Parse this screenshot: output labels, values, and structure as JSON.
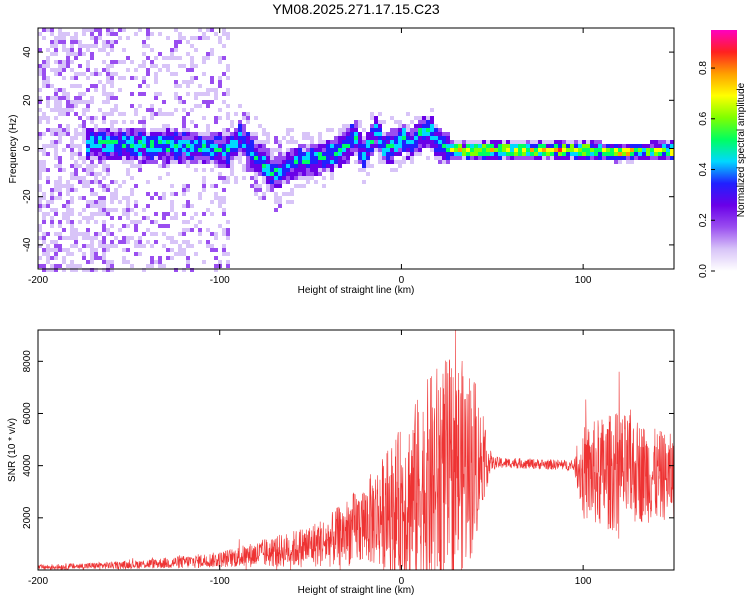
{
  "title": "YM08.2025.271.17.15.C23",
  "chart_data": [
    {
      "type": "heatmap",
      "name": "spectrogram",
      "xlabel": "Height of straight line (km)",
      "ylabel": "Frequency (Hz)",
      "xlim": [
        -200,
        150
      ],
      "ylim": [
        -50,
        50
      ],
      "xticks": [
        "-200",
        "-100",
        "0",
        "100"
      ],
      "yticks": [
        "-40",
        "-20",
        "0",
        "20",
        "40"
      ],
      "colorbar": {
        "label": "Normalized spectral amplitude",
        "range": [
          0,
          0.95
        ],
        "ticks": [
          "0.0",
          "0.2",
          "0.4",
          "0.6",
          "0.8"
        ],
        "colors": [
          "#ffffff",
          "#d8c4f8",
          "#9a4ef0",
          "#6a00e8",
          "#2020ff",
          "#00d8ff",
          "#00ff60",
          "#80ff00",
          "#ffff00",
          "#ffa000",
          "#ff2020",
          "#ff00c0"
        ]
      },
      "ridge": {
        "x": [
          -170,
          -150,
          -130,
          -110,
          -95,
          -90,
          -80,
          -72,
          -60,
          -50,
          -40,
          -30,
          -27,
          -22,
          -15,
          -10,
          -5,
          0,
          5,
          10,
          15,
          20,
          30,
          50,
          80,
          100,
          120,
          150
        ],
        "f": [
          3,
          2,
          2,
          1,
          0,
          5,
          -3,
          -10,
          -5,
          -4,
          -2,
          2,
          8,
          -3,
          8,
          0,
          3,
          5,
          2,
          8,
          8,
          2,
          0,
          0,
          0,
          0,
          -1,
          0
        ]
      }
    },
    {
      "type": "line",
      "name": "snr",
      "xlabel": "Height of straight line (km)",
      "ylabel": "SNR (10 * v/v)",
      "xlim": [
        -200,
        150
      ],
      "ylim": [
        0,
        9200
      ],
      "xticks": [
        "-200",
        "-100",
        "0",
        "100"
      ],
      "yticks": [
        "2000",
        "4000",
        "6000",
        "8000"
      ],
      "color": "#ee3333",
      "envelope": {
        "x": [
          -200,
          -150,
          -120,
          -100,
          -80,
          -60,
          -40,
          -20,
          -10,
          0,
          10,
          20,
          30,
          40,
          45,
          50,
          60,
          80,
          95,
          100,
          110,
          120,
          130,
          140,
          150
        ],
        "center": [
          100,
          200,
          300,
          400,
          600,
          800,
          1100,
          1800,
          2200,
          2500,
          3000,
          3500,
          3800,
          4100,
          4200,
          4100,
          4100,
          4050,
          4000,
          3700,
          3700,
          3800,
          3800,
          3600,
          3600
        ],
        "amp": [
          100,
          150,
          250,
          300,
          500,
          700,
          1000,
          1600,
          2200,
          3000,
          3800,
          4500,
          4500,
          3500,
          1500,
          250,
          200,
          200,
          200,
          1800,
          2200,
          2300,
          2000,
          1800,
          1600
        ]
      }
    }
  ]
}
